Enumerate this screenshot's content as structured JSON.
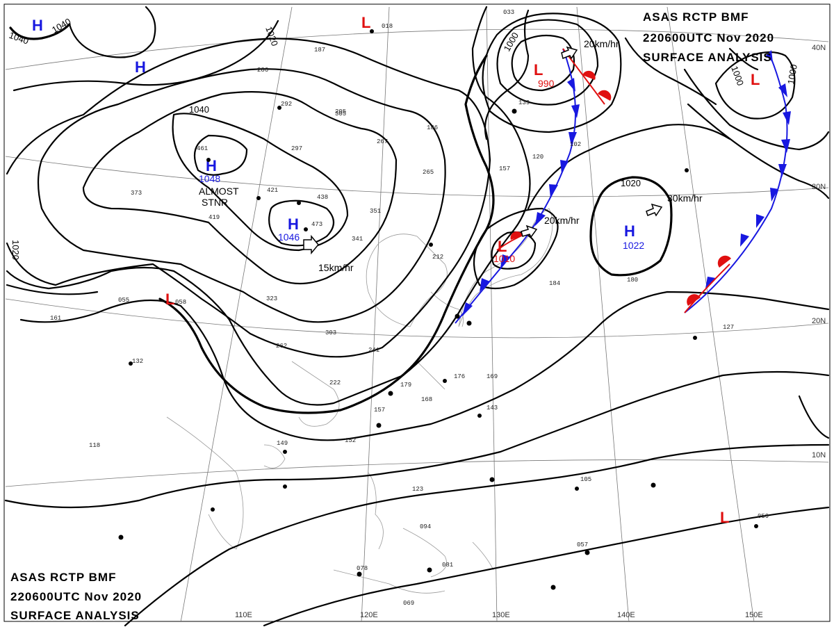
{
  "header_top": {
    "line1": "ASAS    RCTP    BMF",
    "line2": "220600UTC    Nov    2020",
    "line3": "SURFACE ANALYSIS"
  },
  "header_bottom": {
    "line1": "ASAS    RCTP    BMF",
    "line2": "220600UTC    Nov    2020",
    "line3": "SURFACE ANALYSIS"
  },
  "isobar_labels": [
    "1040",
    "1040",
    "1020",
    "1040",
    "1020",
    "1000",
    "1000",
    "1000",
    "1020"
  ],
  "highs": [
    {
      "symbol": "H",
      "value": "1048"
    },
    {
      "symbol": "H",
      "value": "1046"
    },
    {
      "symbol": "H",
      "value": "1022"
    },
    {
      "symbol": "H",
      "value": ""
    },
    {
      "symbol": "H",
      "value": ""
    }
  ],
  "lows": [
    {
      "symbol": "L",
      "value": "990"
    },
    {
      "symbol": "L",
      "value": "1010"
    },
    {
      "symbol": "L",
      "value": ""
    },
    {
      "symbol": "L",
      "value": ""
    },
    {
      "symbol": "L",
      "value": ""
    },
    {
      "symbol": "L",
      "value": ""
    }
  ],
  "annotations": {
    "stnr_line1": "ALMOST",
    "stnr_line2": "STNR"
  },
  "motions": [
    "15km/hr",
    "20km/hr",
    "20km/hr",
    "30km/hr"
  ],
  "lat_labels": [
    "40N",
    "30N",
    "20N",
    "10N"
  ],
  "lon_labels": [
    "110E",
    "120E",
    "130E",
    "140E",
    "150E"
  ],
  "station_values": [
    "461",
    "421",
    "438",
    "473",
    "351",
    "341",
    "305",
    "323",
    "303",
    "262",
    "241",
    "222",
    "212",
    "179",
    "168",
    "157",
    "152",
    "149",
    "132",
    "123",
    "118",
    "186",
    "267",
    "265",
    "297",
    "292",
    "286",
    "205",
    "187",
    "157",
    "120",
    "102",
    "139",
    "184",
    "180",
    "127",
    "176",
    "169",
    "143",
    "105",
    "057",
    "059",
    "058",
    "055",
    "161",
    "373",
    "419",
    "094",
    "081",
    "078",
    "069",
    "018",
    "033"
  ],
  "colors": {
    "high": "#1818e0",
    "low": "#e01010",
    "cold_front": "#1818e0",
    "warm_front": "#e01010",
    "isobar": "#000000",
    "grid": "#777777"
  }
}
